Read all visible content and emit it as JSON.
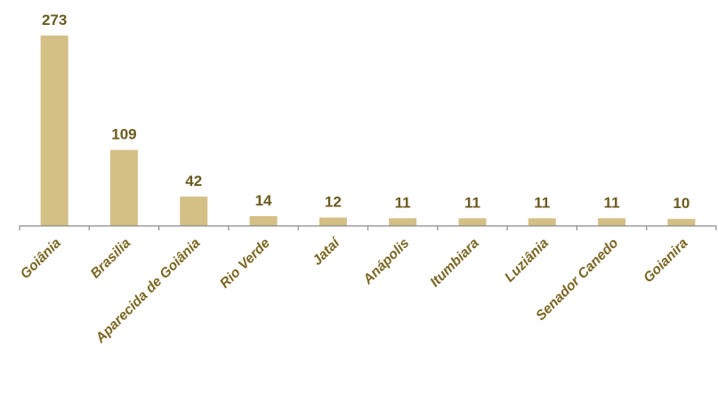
{
  "chart_data": {
    "type": "bar",
    "title": "",
    "xlabel": "",
    "ylabel": "",
    "categories": [
      "Goiânia",
      "Brasilia",
      "Aparecida de Goiânia",
      "Rio Verde",
      "Jataí",
      "Anápolis",
      "Itumbiara",
      "Luziânia",
      "Senador Canedo",
      "Goianira"
    ],
    "values": [
      273,
      109,
      42,
      14,
      12,
      11,
      11,
      11,
      11,
      10
    ],
    "ylim": [
      0,
      273
    ],
    "grid": false,
    "legend": "none",
    "colors": {
      "bar": "#d4bf85",
      "axis": "#8a8a8a",
      "value_label": "#6b5a1e",
      "category_label": "#7a6520"
    }
  }
}
